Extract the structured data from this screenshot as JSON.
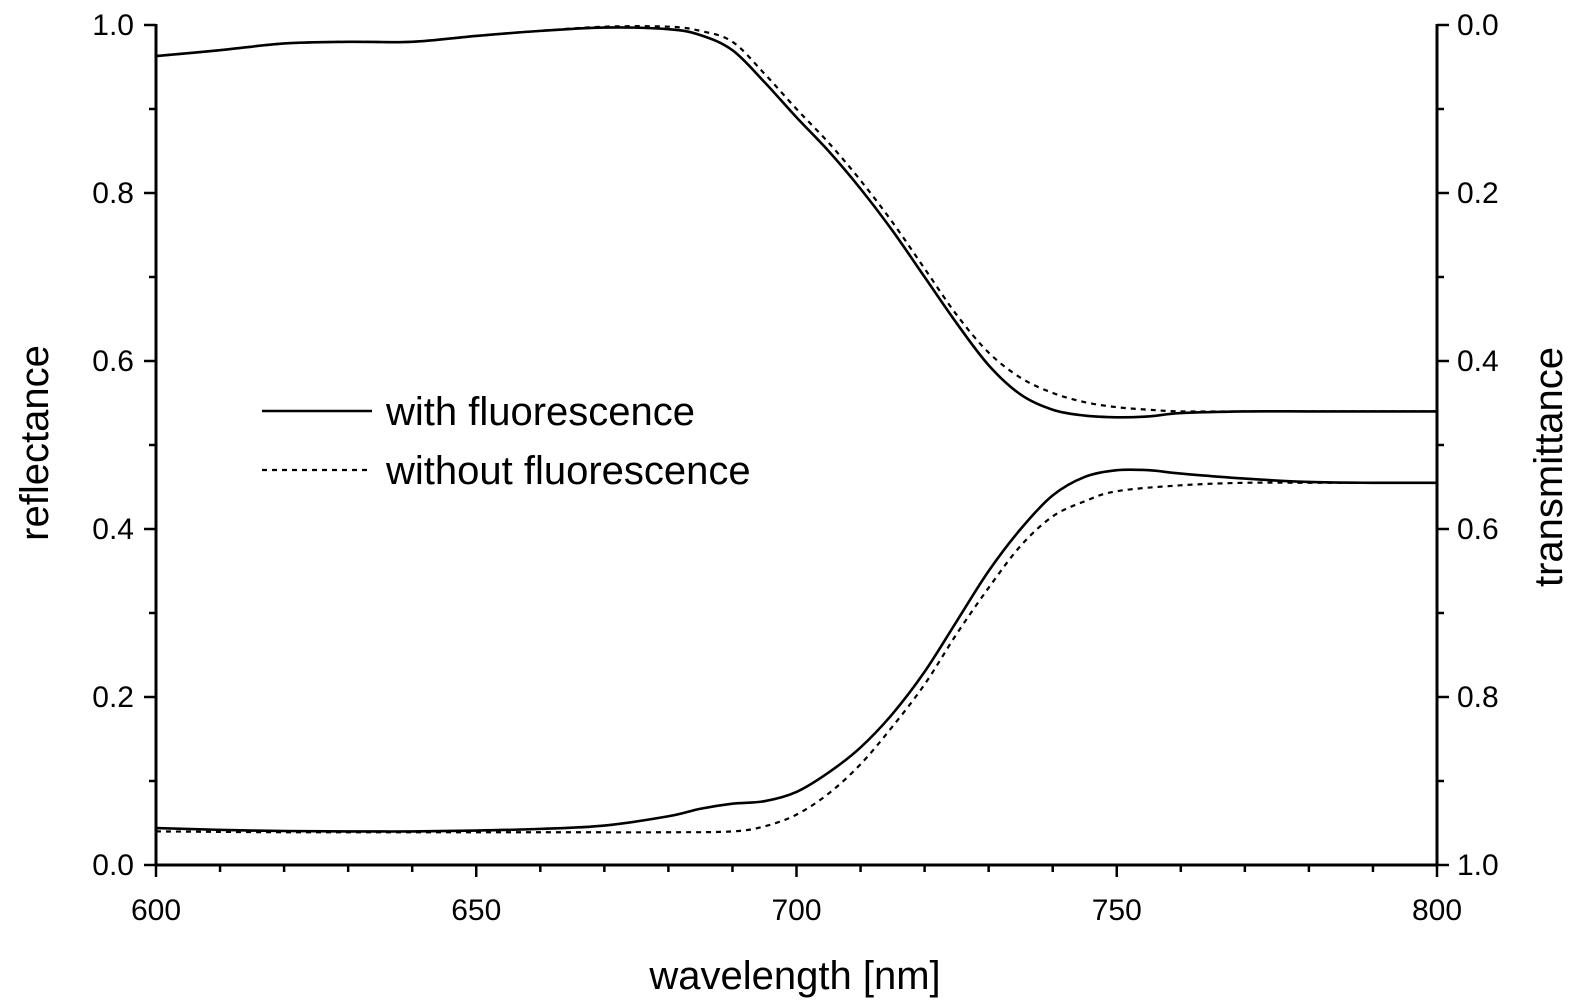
{
  "chart_data": {
    "type": "line",
    "xlabel": "wavelength [nm]",
    "ylabel": "reflectance",
    "y2label": "transmittance",
    "xlim": [
      600,
      800
    ],
    "ylim": [
      0,
      1.0
    ],
    "y2lim": [
      0,
      1.0
    ],
    "y2_inverted": true,
    "x_ticks": [
      "600",
      "650",
      "700",
      "750",
      "800"
    ],
    "y_ticks": [
      "0.0",
      "0.2",
      "0.4",
      "0.6",
      "0.8",
      "1.0"
    ],
    "y2_ticks": [
      "1.0",
      "0.8",
      "0.6",
      "0.4",
      "0.2",
      "0.0"
    ],
    "grid": false,
    "legend_position": "center-left",
    "legend": [
      {
        "label": "with fluorescence",
        "style": "solid"
      },
      {
        "label": "without fluorescence",
        "style": "dotted"
      }
    ],
    "series": [
      {
        "name": "with fluorescence",
        "measure": "reflectance",
        "axis": "left",
        "style": "solid",
        "x": [
          600,
          615,
          630,
          640,
          650,
          660,
          670,
          680,
          685,
          690,
          695,
          700,
          705,
          710,
          715,
          720,
          725,
          730,
          735,
          740,
          745,
          750,
          755,
          760,
          770,
          780,
          790,
          800
        ],
        "y": [
          0.044,
          0.041,
          0.04,
          0.04,
          0.041,
          0.043,
          0.047,
          0.058,
          0.067,
          0.073,
          0.076,
          0.087,
          0.11,
          0.14,
          0.18,
          0.23,
          0.29,
          0.35,
          0.4,
          0.44,
          0.462,
          0.47,
          0.47,
          0.466,
          0.46,
          0.456,
          0.455,
          0.455
        ]
      },
      {
        "name": "without fluorescence",
        "measure": "reflectance",
        "axis": "left",
        "style": "dotted",
        "x": [
          600,
          620,
          640,
          660,
          680,
          690,
          695,
          700,
          705,
          710,
          715,
          720,
          725,
          730,
          735,
          740,
          745,
          750,
          760,
          770,
          780,
          790,
          800
        ],
        "y": [
          0.04,
          0.039,
          0.039,
          0.039,
          0.039,
          0.04,
          0.046,
          0.06,
          0.085,
          0.12,
          0.165,
          0.215,
          0.275,
          0.33,
          0.38,
          0.415,
          0.433,
          0.445,
          0.452,
          0.455,
          0.455,
          0.455,
          0.455
        ]
      },
      {
        "name": "with fluorescence",
        "measure": "transmittance",
        "axis": "right",
        "style": "solid",
        "x": [
          600,
          610,
          620,
          630,
          640,
          650,
          660,
          670,
          680,
          685,
          690,
          695,
          700,
          705,
          710,
          715,
          720,
          725,
          730,
          735,
          740,
          745,
          750,
          755,
          760,
          770,
          780,
          790,
          800
        ],
        "y": [
          0.037,
          0.03,
          0.022,
          0.02,
          0.02,
          0.013,
          0.007,
          0.003,
          0.005,
          0.012,
          0.03,
          0.068,
          0.11,
          0.15,
          0.195,
          0.245,
          0.3,
          0.355,
          0.405,
          0.44,
          0.458,
          0.465,
          0.467,
          0.466,
          0.462,
          0.46,
          0.46,
          0.46,
          0.46
        ]
      },
      {
        "name": "without fluorescence",
        "measure": "transmittance",
        "axis": "right",
        "style": "dotted",
        "x": [
          600,
          610,
          620,
          630,
          640,
          650,
          660,
          670,
          680,
          685,
          690,
          695,
          700,
          705,
          710,
          715,
          720,
          725,
          730,
          735,
          740,
          745,
          750,
          755,
          760,
          770,
          780,
          790,
          800
        ],
        "y": [
          0.037,
          0.03,
          0.022,
          0.02,
          0.02,
          0.013,
          0.007,
          0.002,
          0.002,
          0.007,
          0.02,
          0.058,
          0.1,
          0.14,
          0.185,
          0.235,
          0.29,
          0.345,
          0.39,
          0.42,
          0.438,
          0.449,
          0.455,
          0.458,
          0.46,
          0.46,
          0.46,
          0.46,
          0.46
        ]
      }
    ]
  }
}
